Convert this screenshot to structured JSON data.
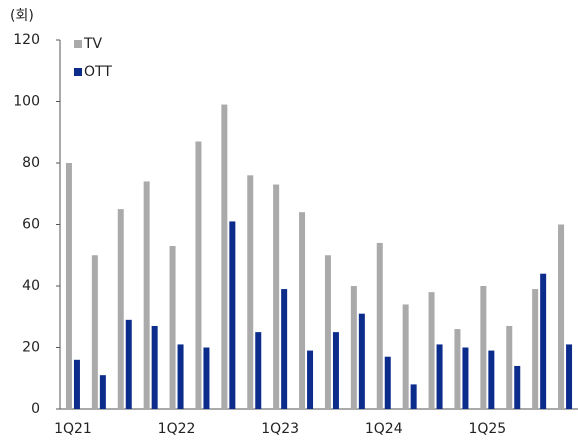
{
  "chart_data": {
    "type": "bar",
    "y_axis_label": "(회)",
    "categories": [
      "1Q21",
      null,
      null,
      null,
      "1Q22",
      null,
      null,
      null,
      "1Q23",
      null,
      null,
      null,
      "1Q24",
      null,
      null,
      null,
      "1Q25",
      null,
      null,
      null
    ],
    "series": [
      {
        "name": "TV",
        "color": "#aaaaaa",
        "values": [
          80,
          50,
          65,
          74,
          53,
          87,
          99,
          76,
          73,
          64,
          50,
          40,
          54,
          34,
          38,
          26,
          40,
          27,
          39,
          60
        ]
      },
      {
        "name": "OTT",
        "color": "#0c2c8c",
        "values": [
          16,
          11,
          29,
          27,
          21,
          20,
          61,
          25,
          39,
          19,
          25,
          31,
          17,
          8,
          21,
          20,
          19,
          14,
          44,
          21
        ]
      }
    ],
    "ylim": [
      0,
      120
    ],
    "yticks": [
      0,
      20,
      40,
      60,
      80,
      100,
      120
    ],
    "legend": "top-left"
  }
}
